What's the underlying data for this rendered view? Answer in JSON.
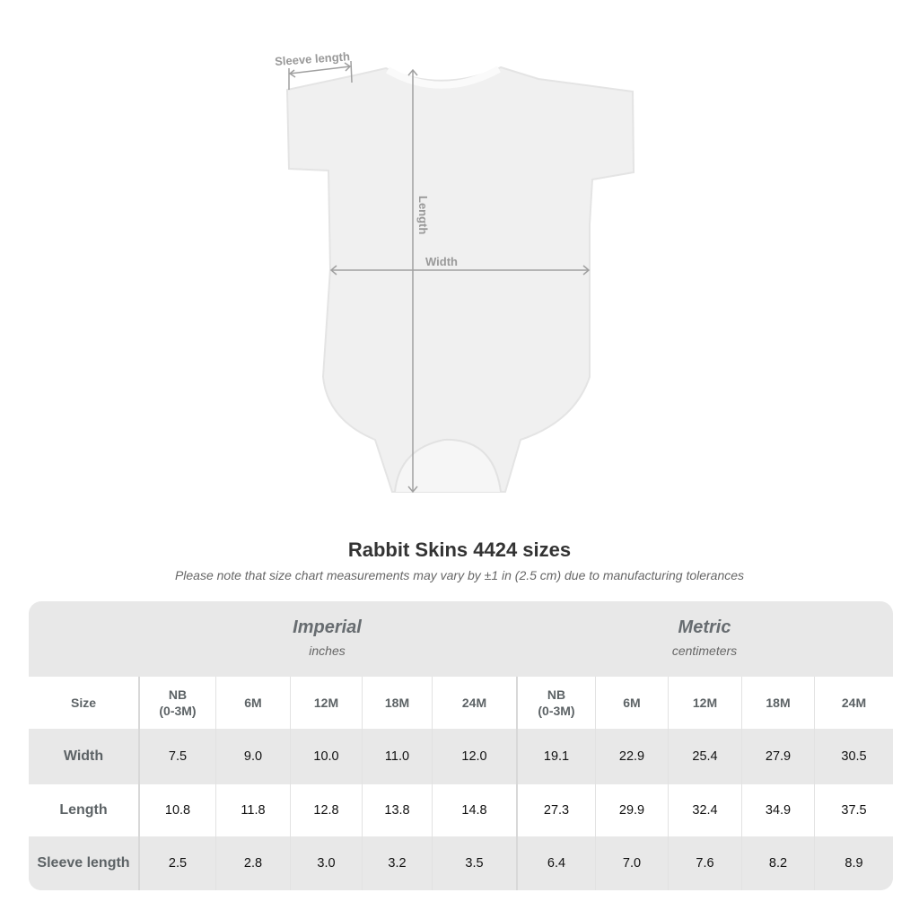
{
  "diagram": {
    "sleeve_label": "Sleeve length",
    "length_label": "Length",
    "width_label": "Width"
  },
  "title": "Rabbit Skins 4424 sizes",
  "note": "Please note that size chart measurements may vary by ±1 in (2.5 cm) due to manufacturing tolerances",
  "table": {
    "imperial": {
      "label": "Imperial",
      "unit": "inches"
    },
    "metric": {
      "label": "Metric",
      "unit": "centimeters"
    },
    "size_label": "Size",
    "sizes": [
      "NB\n(0-3M)",
      "6M",
      "12M",
      "18M",
      "24M"
    ],
    "rows": [
      {
        "label": "Width",
        "imperial": [
          "7.5",
          "9.0",
          "10.0",
          "11.0",
          "12.0"
        ],
        "metric": [
          "19.1",
          "22.9",
          "25.4",
          "27.9",
          "30.5"
        ]
      },
      {
        "label": "Length",
        "imperial": [
          "10.8",
          "11.8",
          "12.8",
          "13.8",
          "14.8"
        ],
        "metric": [
          "27.3",
          "29.9",
          "32.4",
          "34.9",
          "37.5"
        ]
      },
      {
        "label": "Sleeve length",
        "imperial": [
          "2.5",
          "2.8",
          "3.0",
          "3.2",
          "3.5"
        ],
        "metric": [
          "6.4",
          "7.0",
          "7.6",
          "8.2",
          "8.9"
        ]
      }
    ]
  }
}
